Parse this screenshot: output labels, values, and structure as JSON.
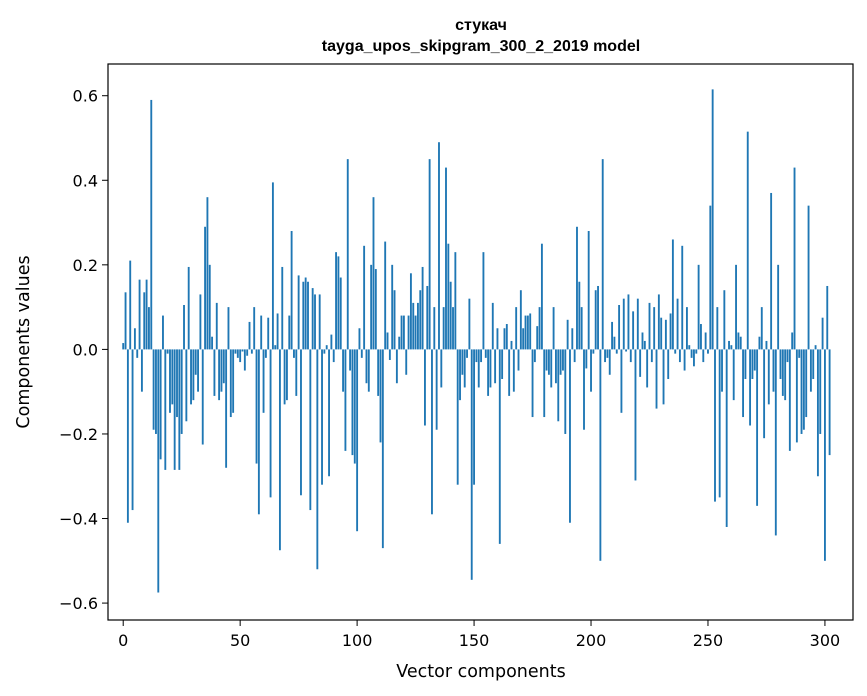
{
  "chart_data": {
    "type": "bar",
    "title_line1": "стукач",
    "title_line2": "tayga_upos_skipgram_300_2_2019 model",
    "xlabel": "Vector components",
    "ylabel": "Components values",
    "xlim": [
      -6.5,
      312
    ],
    "ylim": [
      -0.64,
      0.675
    ],
    "xticks": [
      0,
      50,
      100,
      150,
      200,
      250,
      300
    ],
    "xtick_labels": [
      "0",
      "50",
      "100",
      "150",
      "200",
      "250",
      "300"
    ],
    "yticks": [
      -0.6,
      -0.4,
      -0.2,
      0.0,
      0.2,
      0.4,
      0.6
    ],
    "ytick_labels": [
      "−0.6",
      "−0.4",
      "−0.2",
      "0.0",
      "0.2",
      "0.4",
      "0.6"
    ],
    "bar_color": "#1f77b4",
    "values": [
      0.015,
      0.135,
      -0.41,
      0.21,
      -0.38,
      0.05,
      -0.02,
      0.165,
      -0.1,
      0.135,
      0.165,
      0.1,
      0.59,
      -0.19,
      -0.2,
      -0.575,
      -0.26,
      0.08,
      -0.285,
      -0.01,
      -0.15,
      -0.13,
      -0.285,
      -0.16,
      -0.285,
      -0.2,
      0.105,
      -0.17,
      0.195,
      -0.13,
      -0.12,
      -0.06,
      -0.1,
      0.13,
      -0.225,
      0.29,
      0.36,
      0.2,
      0.03,
      -0.11,
      0.11,
      -0.12,
      -0.1,
      -0.08,
      -0.28,
      0.1,
      -0.16,
      -0.15,
      -0.01,
      -0.02,
      -0.03,
      -0.005,
      -0.05,
      -0.015,
      0.065,
      -0.01,
      0.1,
      -0.27,
      -0.39,
      0.08,
      -0.15,
      -0.02,
      0.075,
      -0.35,
      0.395,
      0.01,
      0.085,
      -0.475,
      0.195,
      -0.13,
      -0.12,
      0.08,
      0.28,
      -0.02,
      -0.11,
      0.175,
      -0.345,
      0.16,
      0.17,
      0.16,
      -0.38,
      0.145,
      0.13,
      -0.52,
      0.13,
      -0.32,
      -0.01,
      0.01,
      -0.3,
      0.035,
      -0.03,
      0.23,
      0.22,
      0.17,
      -0.1,
      -0.24,
      0.45,
      -0.05,
      -0.25,
      -0.27,
      -0.43,
      0.05,
      -0.02,
      0.245,
      -0.08,
      -0.1,
      0.2,
      0.36,
      0.19,
      -0.11,
      -0.22,
      -0.47,
      0.255,
      0.04,
      -0.025,
      0.2,
      0.14,
      -0.08,
      0.03,
      0.08,
      0.08,
      -0.06,
      0.08,
      0.18,
      0.11,
      0.08,
      0.11,
      0.14,
      0.195,
      -0.18,
      0.15,
      0.45,
      -0.39,
      0.1,
      -0.19,
      0.49,
      -0.09,
      0.1,
      0.43,
      0.25,
      0.16,
      0.1,
      0.23,
      -0.32,
      -0.12,
      -0.06,
      -0.09,
      -0.02,
      0.12,
      -0.545,
      -0.32,
      -0.03,
      -0.09,
      -0.03,
      0.23,
      -0.02,
      -0.11,
      -0.09,
      0.11,
      -0.08,
      0.05,
      -0.46,
      -0.07,
      0.05,
      0.06,
      -0.11,
      0.02,
      -0.1,
      0.1,
      -0.05,
      0.14,
      0.05,
      0.08,
      0.08,
      0.085,
      -0.16,
      -0.03,
      0.055,
      0.1,
      0.25,
      -0.16,
      -0.05,
      -0.06,
      -0.09,
      0.1,
      -0.08,
      -0.17,
      -0.06,
      -0.05,
      -0.2,
      0.07,
      -0.41,
      0.05,
      -0.03,
      0.29,
      0.16,
      0.1,
      -0.19,
      -0.045,
      0.28,
      -0.1,
      -0.01,
      0.14,
      0.15,
      -0.5,
      0.45,
      -0.03,
      -0.02,
      -0.06,
      0.065,
      0.03,
      -0.01,
      0.105,
      -0.15,
      0.12,
      -0.005,
      0.13,
      -0.03,
      0.09,
      -0.31,
      0.12,
      -0.065,
      0.04,
      0.02,
      -0.09,
      0.11,
      -0.03,
      0.1,
      -0.14,
      0.13,
      0.075,
      -0.13,
      0.07,
      -0.07,
      0.085,
      0.26,
      -0.01,
      0.12,
      -0.03,
      0.245,
      -0.05,
      0.1,
      0.01,
      -0.02,
      -0.04,
      -0.01,
      0.2,
      0.06,
      -0.03,
      0.04,
      -0.01,
      0.34,
      0.615,
      -0.36,
      0.1,
      -0.35,
      -0.1,
      0.14,
      -0.42,
      0.02,
      0.01,
      -0.12,
      0.2,
      0.04,
      0.03,
      -0.16,
      -0.07,
      0.515,
      -0.18,
      -0.07,
      -0.05,
      -0.37,
      0.03,
      0.1,
      -0.21,
      0.02,
      -0.13,
      0.37,
      -0.1,
      -0.44,
      0.2,
      -0.07,
      -0.11,
      -0.12,
      -0.03,
      -0.24,
      0.04,
      0.43,
      -0.22,
      -0.02,
      -0.2,
      -0.19,
      -0.16,
      0.34,
      -0.1,
      -0.07,
      0.01,
      -0.3,
      -0.2,
      0.075,
      -0.5,
      0.15,
      -0.25
    ]
  }
}
